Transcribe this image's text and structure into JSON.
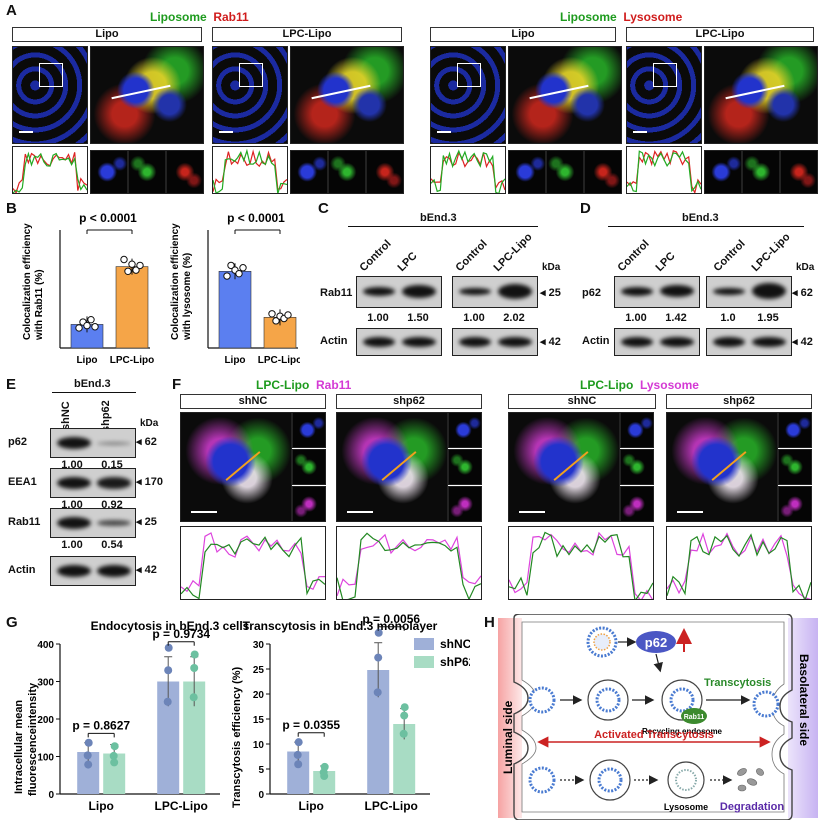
{
  "panels": {
    "A": {
      "label": "A",
      "title1_green": "Liposome",
      "title1_red": "Rab11",
      "title2_green": "Liposome",
      "title2_red": "Lysosome",
      "groups": [
        "Lipo",
        "LPC-Lipo",
        "Lipo",
        "LPC-Lipo"
      ]
    },
    "B": {
      "label": "B",
      "left": {
        "ylabel1": "Colocalization efficiency",
        "ylabel2": "with Rab11 (%)",
        "p": "p < 0.0001",
        "cats": [
          "Lipo",
          "LPC-Lipo"
        ]
      },
      "right": {
        "ylabel1": "Colocalization efficiency",
        "ylabel2": "with lysosome (%)",
        "p": "p < 0.0001",
        "cats": [
          "Lipo",
          "LPC-Lipo"
        ]
      }
    },
    "C": {
      "label": "C",
      "cell": "bEnd.3",
      "lanes": [
        "Control",
        "LPC",
        "Control",
        "LPC-Lipo"
      ],
      "row1": "Rab11",
      "row2": "Actin",
      "kda": "kDa",
      "mw1": "25",
      "mw2": "42",
      "vals": [
        "1.00",
        "1.50",
        "1.00",
        "2.02"
      ]
    },
    "D": {
      "label": "D",
      "cell": "bEnd.3",
      "lanes": [
        "Control",
        "LPC",
        "Control",
        "LPC-Lipo"
      ],
      "row1": "p62",
      "row2": "Actin",
      "kda": "kDa",
      "mw1": "62",
      "mw2": "42",
      "vals": [
        "1.00",
        "1.42",
        "1.0",
        "1.95"
      ]
    },
    "E": {
      "label": "E",
      "cell": "bEnd.3",
      "lanes": [
        "shNC",
        "shp62"
      ],
      "kda": "kDa",
      "rows": [
        {
          "name": "p62",
          "mw": "62",
          "vals": [
            "1.00",
            "0.15"
          ]
        },
        {
          "name": "EEA1",
          "mw": "170",
          "vals": [
            "1.00",
            "0.92"
          ]
        },
        {
          "name": "Rab11",
          "mw": "25",
          "vals": [
            "1.00",
            "0.54"
          ]
        },
        {
          "name": "Actin",
          "mw": "42",
          "vals": [
            "",
            ""
          ]
        }
      ]
    },
    "F": {
      "label": "F",
      "title1_green": "LPC-Lipo",
      "title1_mag": "Rab11",
      "title2_green": "LPC-Lipo",
      "title2_mag": "Lysosome",
      "groups": [
        "shNC",
        "shp62",
        "shNC",
        "shp62"
      ]
    },
    "G": {
      "label": "G",
      "left": {
        "title": "Endocytosis in bEnd.3 cells",
        "ylabel1": "Intracellular mean",
        "ylabel2": "fluorescenceintensity",
        "p1": "p = 0.8627",
        "p2": "p = 0.9734",
        "cats": [
          "Lipo",
          "LPC-Lipo"
        ],
        "yticks": [
          "0",
          "100",
          "200",
          "300",
          "400"
        ]
      },
      "right": {
        "title": "Transcytosis in bEnd.3 monolayer",
        "ylabel": "Transcytosis efficiency (%)",
        "p1": "p = 0.0355",
        "p2": "p = 0.0056",
        "cats": [
          "Lipo",
          "LPC-Lipo"
        ],
        "yticks": [
          "0",
          "5",
          "10",
          "15",
          "20",
          "25",
          "30"
        ]
      },
      "legend": [
        "shNC",
        "shP62"
      ]
    },
    "H": {
      "label": "H",
      "luminal": "Luminal side",
      "basolateral": "Basolateral side",
      "p62": "p62",
      "transcytosis": "Transcytosis",
      "rab11": "Rab11",
      "recycling": "Recycling endosome",
      "activated": "Activated Transcytosis",
      "lysosome": "Lysosome",
      "degradation": "Degradation"
    }
  },
  "chart_data": [
    {
      "type": "bar",
      "title": "",
      "ylabel": "Colocalization efficiency with Rab11 (%)",
      "categories": [
        "Lipo",
        "LPC-Lipo"
      ],
      "values": [
        20,
        69
      ],
      "ylim": [
        0,
        100
      ]
    },
    {
      "type": "bar",
      "title": "",
      "ylabel": "Colocalization efficiency with lysosome (%)",
      "categories": [
        "Lipo",
        "LPC-Lipo"
      ],
      "values": [
        65,
        26
      ],
      "ylim": [
        0,
        100
      ]
    },
    {
      "type": "bar",
      "title": "Endocytosis in bEnd.3 cells",
      "ylabel": "Intracellular mean fluorescenceintensity",
      "categories": [
        "Lipo",
        "LPC-Lipo"
      ],
      "series": [
        {
          "name": "shNC",
          "values": [
            112,
            300
          ]
        },
        {
          "name": "shP62",
          "values": [
            108,
            300
          ]
        }
      ],
      "ylim": [
        0,
        400
      ]
    },
    {
      "type": "bar",
      "title": "Transcytosis in bEnd.3 monolayer",
      "ylabel": "Transcytosis efficiency (%)",
      "categories": [
        "Lipo",
        "LPC-Lipo"
      ],
      "series": [
        {
          "name": "shNC",
          "values": [
            8.5,
            24.8
          ]
        },
        {
          "name": "shP62",
          "values": [
            4.6,
            14
          ]
        }
      ],
      "ylim": [
        0,
        30
      ]
    }
  ],
  "colors": {
    "lipo": "#5b7ff0",
    "lpclipo": "#f5a548",
    "shnc": "#9fb0d8",
    "shp62": "#a8dcc4"
  }
}
